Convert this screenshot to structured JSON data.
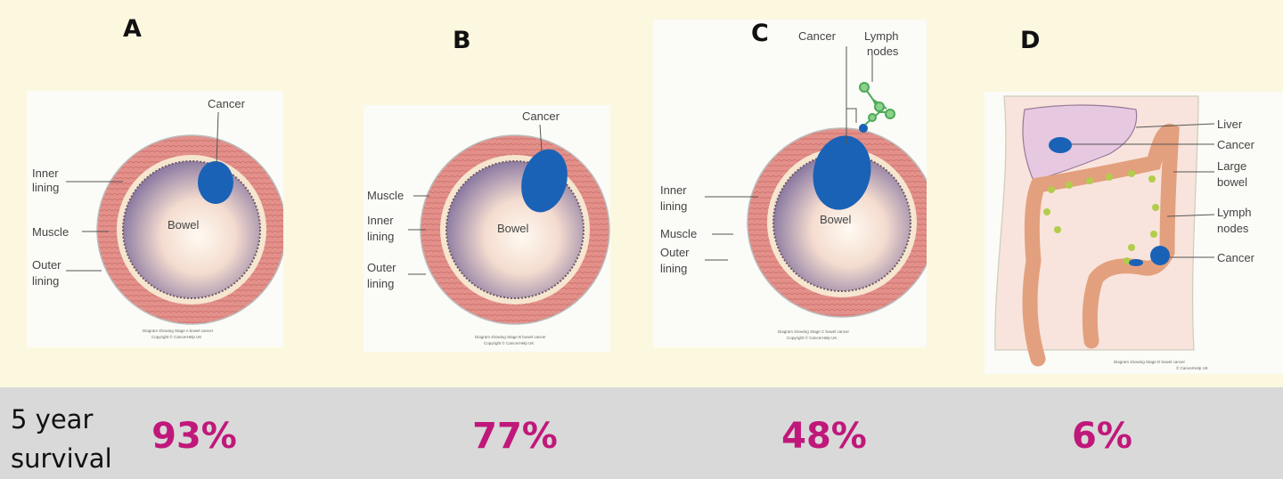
{
  "stages": [
    {
      "letter": "A",
      "labels": {
        "cancer": "Cancer",
        "inner1": "Inner",
        "inner2": "lining",
        "muscle": "Muscle",
        "outer1": "Outer",
        "outer2": "lining",
        "bowel": "Bowel"
      },
      "caption1": "Diagram showing Stage A bowel cancer",
      "caption2": "Copyright © CancerHelp UK",
      "survival": "93%"
    },
    {
      "letter": "B",
      "labels": {
        "cancer": "Cancer",
        "muscle": "Muscle",
        "inner1": "Inner",
        "inner2": "lining",
        "outer1": "Outer",
        "outer2": "lining",
        "bowel": "Bowel"
      },
      "caption1": "Diagram showing Stage B bowel cancer",
      "caption2": "Copyright © CancerHelp UK",
      "survival": "77%"
    },
    {
      "letter": "C",
      "labels": {
        "cancer": "Cancer",
        "lymph1": "Lymph",
        "lymph2": "nodes",
        "inner1": "Inner",
        "inner2": "lining",
        "muscle": "Muscle",
        "outer1": "Outer",
        "outer2": "lining",
        "bowel": "Bowel"
      },
      "caption1": "Diagram showing Stage C bowel cancer",
      "caption2": "Copyright © CancerHelp UK",
      "survival": "48%"
    },
    {
      "letter": "D",
      "labels": {
        "liver": "Liver",
        "cancer1": "Cancer",
        "bowel1": "Large",
        "bowel2": "bowel",
        "lymph1": "Lymph",
        "lymph2": "nodes",
        "cancer2": "Cancer"
      },
      "caption1": "Diagram showing Stage D bowel cancer",
      "caption2": "© CancerHelp UK",
      "survival": "6%"
    }
  ],
  "survival_label_line1": "5 year",
  "survival_label_line2": "survival",
  "colors": {
    "cancer": "#1a62b6",
    "muscle": "#e08880",
    "percent": "#c0187a",
    "lymph": "#a8c84a"
  }
}
